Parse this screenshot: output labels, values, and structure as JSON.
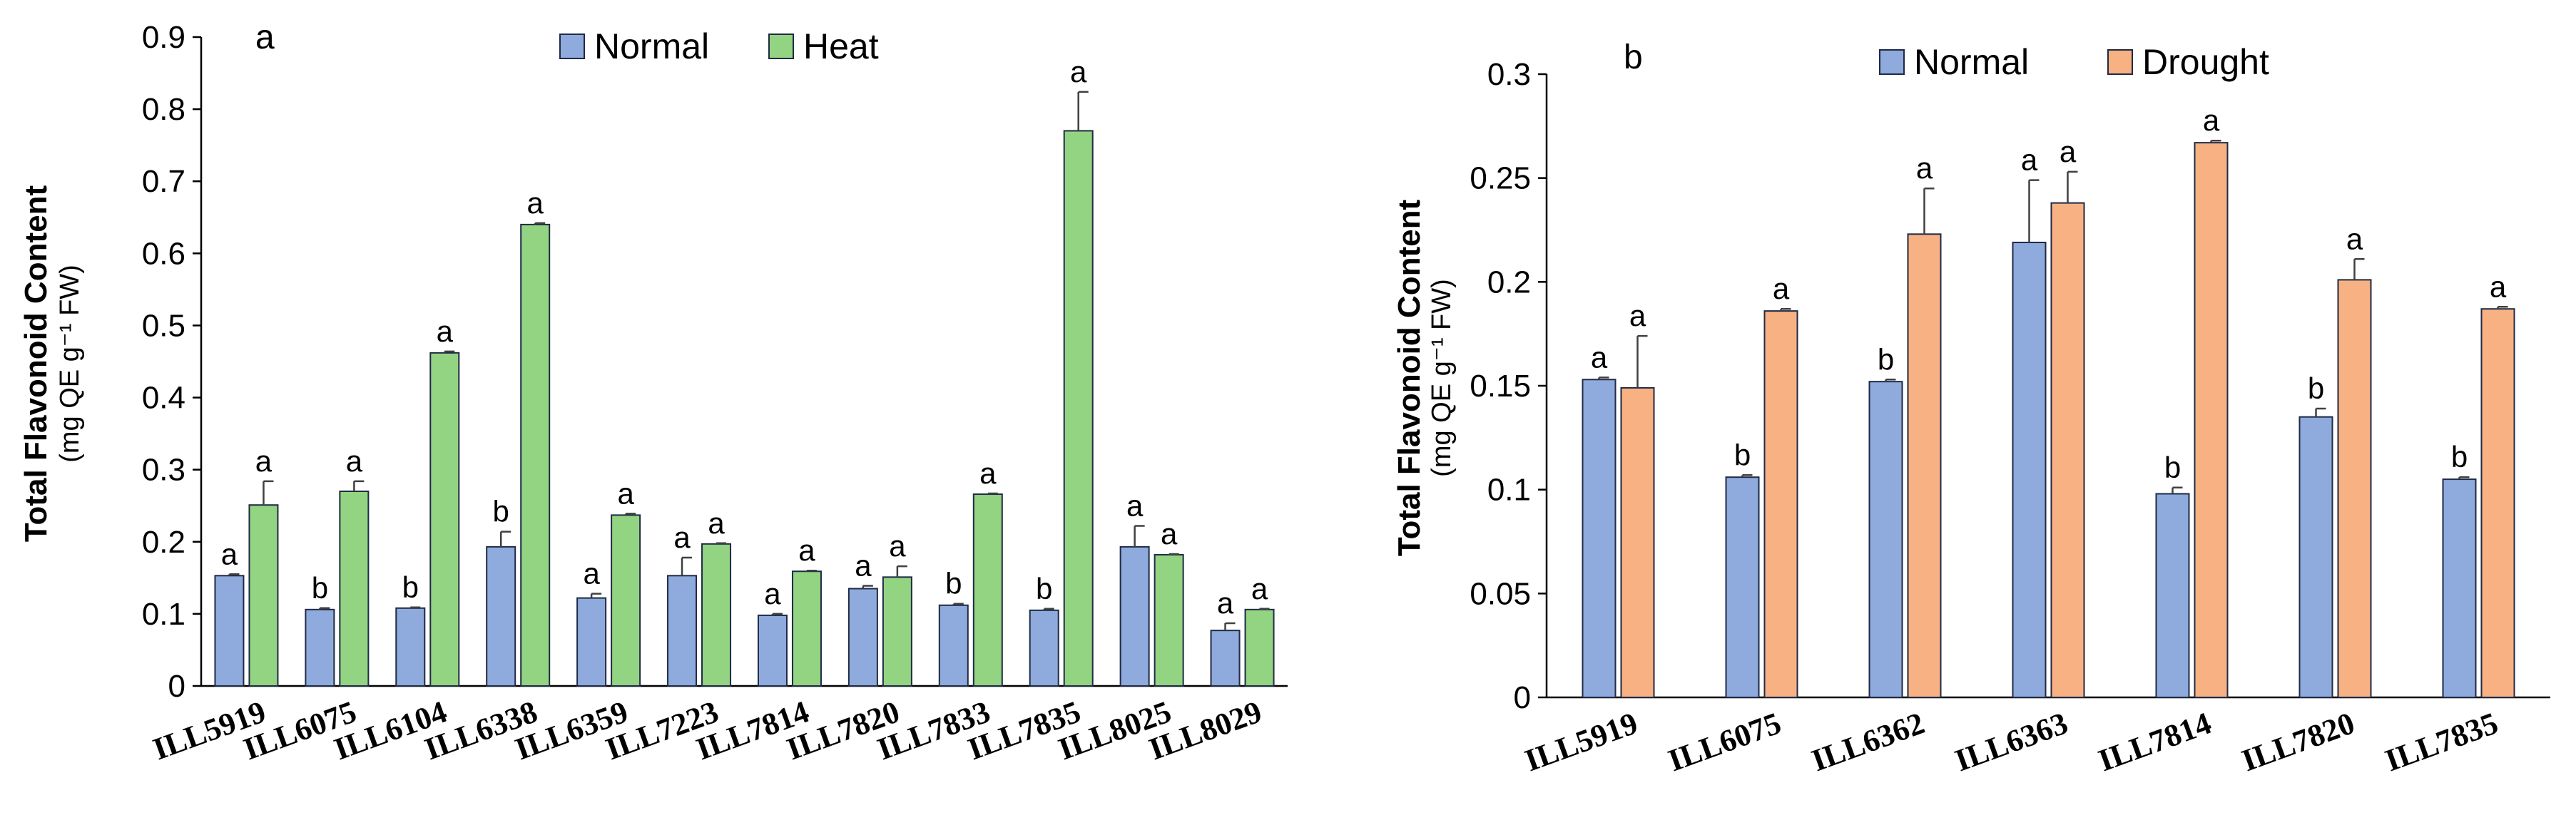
{
  "chart_data": [
    {
      "type": "bar",
      "panel_label": "a",
      "ylabel": "Total Flavonoid Content",
      "ylabel_unit": "(mg QE g⁻¹ FW)",
      "ylim": [
        0,
        0.9
      ],
      "yticks": [
        0,
        0.1,
        0.2,
        0.3,
        0.4,
        0.5,
        0.6,
        0.7,
        0.8,
        0.9
      ],
      "ytick_labels": [
        "0",
        "0.1",
        "0.2",
        "0.3",
        "0.4",
        "0.5",
        "0.6",
        "0.7",
        "0.8",
        "0.9"
      ],
      "grid": false,
      "legend_position": "top-center",
      "categories": [
        "ILL5919",
        "ILL6075",
        "ILL6104",
        "ILL6338",
        "ILL6359",
        "ILL7223",
        "ILL7814",
        "ILL7820",
        "ILL7833",
        "ILL7835",
        "ILL8025",
        "ILL8029"
      ],
      "series": [
        {
          "name": "Normal",
          "color": "#8FAADC",
          "values": [
            0.153,
            0.106,
            0.108,
            0.193,
            0.122,
            0.153,
            0.098,
            0.135,
            0.112,
            0.105,
            0.193,
            0.077
          ],
          "errors": [
            0.002,
            0.002,
            0.001,
            0.021,
            0.006,
            0.025,
            0.002,
            0.004,
            0.002,
            0.002,
            0.029,
            0.01
          ],
          "letters": [
            "a",
            "b",
            "b",
            "b",
            "a",
            "a",
            "a",
            "a",
            "b",
            "b",
            "a",
            "a"
          ]
        },
        {
          "name": "Heat",
          "color": "#92D482",
          "values": [
            0.251,
            0.27,
            0.462,
            0.64,
            0.237,
            0.197,
            0.159,
            0.151,
            0.266,
            0.77,
            0.182,
            0.106
          ],
          "errors": [
            0.033,
            0.014,
            0.002,
            0.002,
            0.002,
            0.001,
            0.001,
            0.015,
            0.001,
            0.054,
            0.001,
            0.001
          ],
          "letters": [
            "a",
            "a",
            "a",
            "a",
            "a",
            "a",
            "a",
            "a",
            "a",
            "a",
            "a",
            "a"
          ]
        }
      ]
    },
    {
      "type": "bar",
      "panel_label": "b",
      "ylabel": "Total Flavonoid Content",
      "ylabel_unit": "(mg QE g⁻¹ FW)",
      "ylim": [
        0,
        0.3
      ],
      "yticks": [
        0,
        0.05,
        0.1,
        0.15,
        0.2,
        0.25,
        0.3
      ],
      "ytick_labels": [
        "0",
        "0.05",
        "0.1",
        "0.15",
        "0.2",
        "0.25",
        "0.3"
      ],
      "grid": false,
      "legend_position": "top-center",
      "categories": [
        "ILL5919",
        "ILL6075",
        "ILL6362",
        "ILL6363",
        "ILL7814",
        "ILL7820",
        "ILL7835"
      ],
      "series": [
        {
          "name": "Normal",
          "color": "#8FAADC",
          "values": [
            0.153,
            0.106,
            0.152,
            0.219,
            0.098,
            0.135,
            0.105
          ],
          "errors": [
            0.001,
            0.001,
            0.001,
            0.03,
            0.003,
            0.004,
            0.001
          ],
          "letters": [
            "a",
            "b",
            "b",
            "a",
            "b",
            "b",
            "b"
          ]
        },
        {
          "name": "Drought",
          "color": "#F8B183",
          "values": [
            0.149,
            0.186,
            0.223,
            0.238,
            0.267,
            0.201,
            0.187
          ],
          "errors": [
            0.025,
            0.001,
            0.022,
            0.015,
            0.001,
            0.01,
            0.001
          ],
          "letters": [
            "a",
            "a",
            "a",
            "a",
            "a",
            "a",
            "a"
          ]
        }
      ]
    }
  ]
}
